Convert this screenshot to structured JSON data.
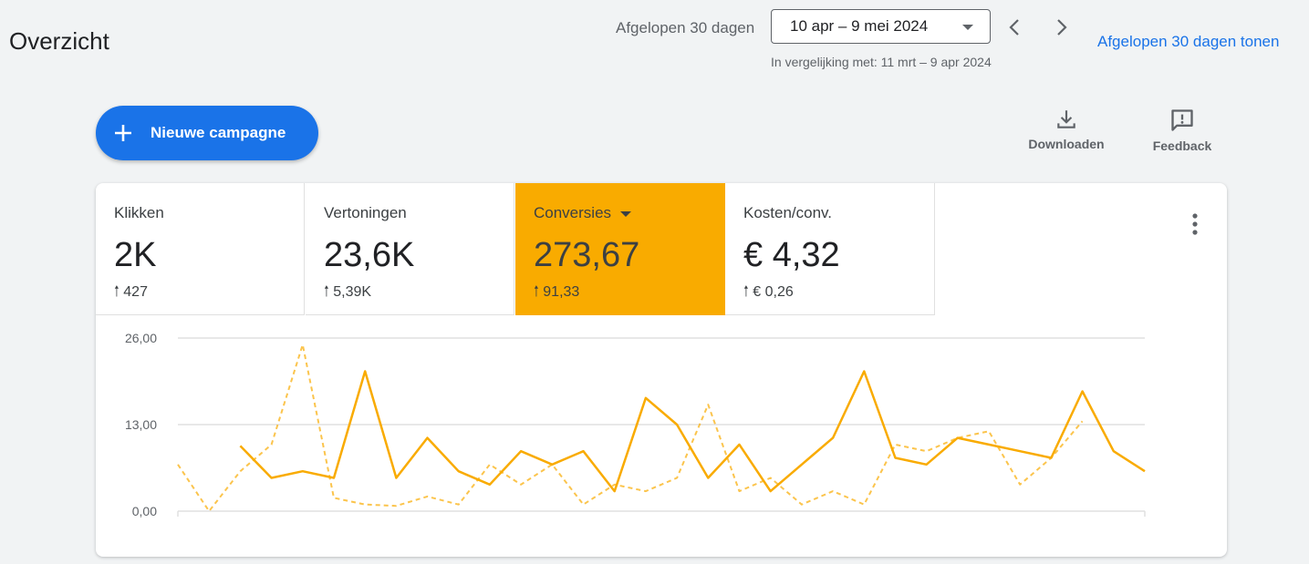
{
  "header": {
    "title": "Overzicht",
    "range_label": "Afgelopen 30 dagen",
    "date_range": "10 apr – 9 mei 2024",
    "compare_text": "In vergelijking met: 11 mrt – 9 apr 2024",
    "show_link": "Afgelopen 30 dagen tonen"
  },
  "actions": {
    "new_campaign": "Nieuwe campagne",
    "download": "Downloaden",
    "feedback": "Feedback"
  },
  "metrics": [
    {
      "label": "Klikken",
      "value": "2K",
      "delta": "427"
    },
    {
      "label": "Vertoningen",
      "value": "23,6K",
      "delta": "5,39K"
    },
    {
      "label": "Conversies",
      "value": "273,67",
      "delta": "91,33",
      "active": true
    },
    {
      "label": "Kosten/conv.",
      "value": "€ 4,32",
      "delta": "€ 0,26"
    }
  ],
  "colors": {
    "accent": "#f9ab00",
    "link": "#1a73e8",
    "grid": "#e0e0e0"
  },
  "chart_data": {
    "type": "line",
    "y_tick_labels": [
      "0,00",
      "13,00",
      "26,00"
    ],
    "ylim": [
      0,
      26
    ],
    "grid": true,
    "series": [
      {
        "style": "solid",
        "values": [
          null,
          null,
          9.8,
          5.0,
          6.0,
          5.0,
          21.0,
          5.0,
          11.0,
          6.0,
          4.0,
          9.0,
          7.0,
          9.0,
          3.0,
          17.0,
          13.0,
          5.0,
          10.0,
          3.0,
          7.0,
          11.0,
          21.0,
          8.0,
          7.0,
          11.0,
          10.0,
          9.0,
          8.0,
          18.0,
          9.0,
          6.0
        ]
      },
      {
        "style": "dashed",
        "values": [
          7.0,
          0.0,
          6.0,
          10.0,
          25.0,
          2.0,
          1.0,
          0.8,
          2.2,
          1.0,
          7.0,
          4.0,
          7.0,
          1.0,
          4.0,
          3.0,
          5.0,
          16.0,
          3.0,
          5.0,
          1.0,
          3.0,
          1.0,
          10.0,
          9.0,
          11.0,
          12.0,
          4.0,
          8.0,
          13.5,
          null,
          null
        ]
      }
    ]
  }
}
